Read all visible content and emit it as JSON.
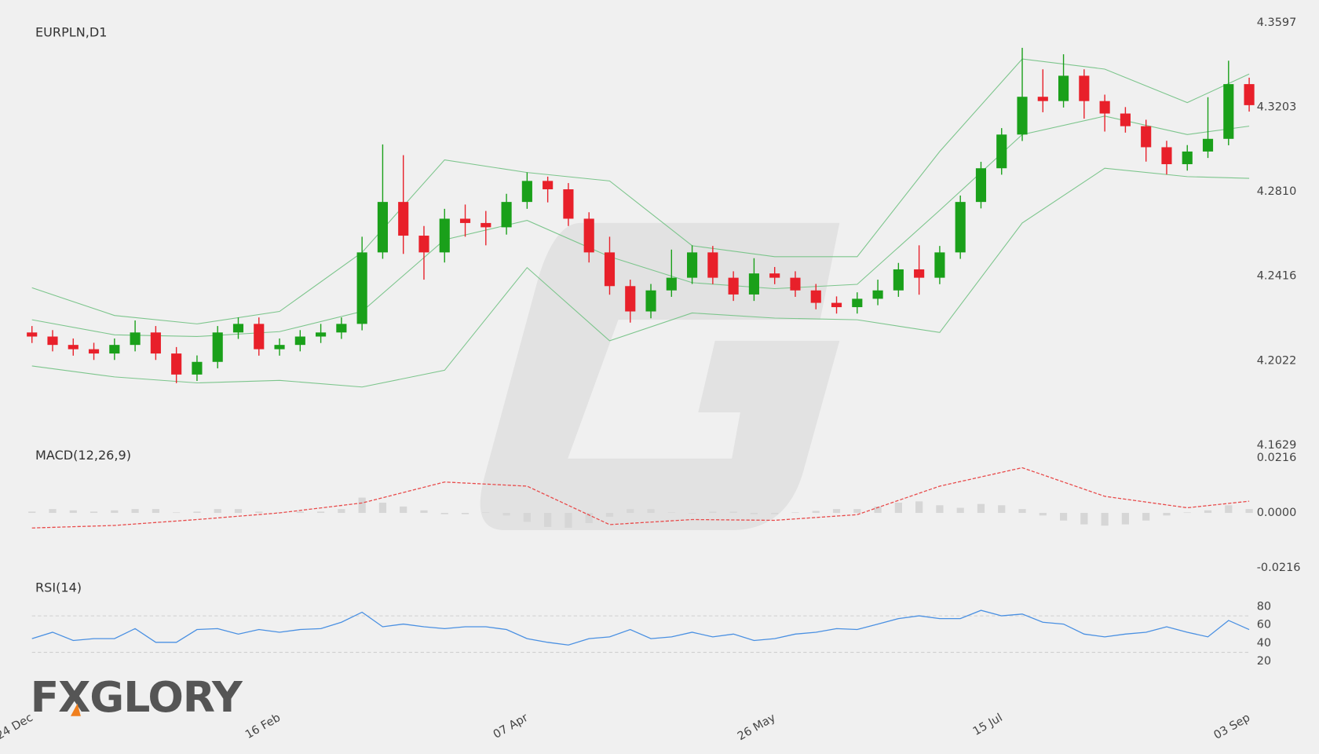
{
  "logo": "FXGLORY",
  "chart_data": [
    {
      "type": "candlestick",
      "title": "EURPLN,D1",
      "up_color": "#1aa01a",
      "down_color": "#e8202a",
      "open": [
        4.2154,
        4.2135,
        4.2096,
        4.2076,
        4.2056,
        4.2096,
        4.2154,
        4.2056,
        4.1958,
        4.2017,
        4.2154,
        4.2194,
        4.2076,
        4.2096,
        4.2135,
        4.2154,
        4.2194,
        4.2527,
        4.2762,
        4.2605,
        4.2527,
        4.2684,
        4.2664,
        4.2644,
        4.2762,
        4.286,
        4.2821,
        4.2684,
        4.2527,
        4.237,
        4.2252,
        4.235,
        4.2409,
        4.2527,
        4.2409,
        4.2331,
        4.2429,
        4.2409,
        4.235,
        4.2292,
        4.2272,
        4.2311,
        4.235,
        4.2448,
        4.2409,
        4.2527,
        4.2762,
        4.2919,
        4.3076,
        4.3252,
        4.3232,
        4.335,
        4.3232,
        4.3174,
        4.3115,
        4.3017,
        4.2938,
        4.2997,
        4.3056,
        4.3311
      ],
      "high": [
        4.2184,
        4.2165,
        4.2126,
        4.2106,
        4.2126,
        4.221,
        4.2184,
        4.2086,
        4.2047,
        4.2184,
        4.2224,
        4.2224,
        4.2126,
        4.2165,
        4.2194,
        4.2224,
        4.26,
        4.303,
        4.298,
        4.265,
        4.273,
        4.275,
        4.272,
        4.28,
        4.29,
        4.288,
        4.285,
        4.2714,
        4.26,
        4.24,
        4.238,
        4.254,
        4.256,
        4.2557,
        4.2439,
        4.25,
        4.2459,
        4.2439,
        4.238,
        4.2322,
        4.2341,
        4.24,
        4.2478,
        4.256,
        4.2557,
        4.2792,
        4.2949,
        4.3106,
        4.348,
        4.338,
        4.345,
        4.338,
        4.3262,
        4.3204,
        4.3145,
        4.3047,
        4.3027,
        4.325,
        4.342,
        4.3341
      ],
      "low": [
        4.2105,
        4.2066,
        4.2046,
        4.2026,
        4.2026,
        4.2066,
        4.2026,
        4.1918,
        4.1928,
        4.1987,
        4.2124,
        4.2046,
        4.2046,
        4.2066,
        4.2105,
        4.2124,
        4.2164,
        4.2497,
        4.252,
        4.24,
        4.248,
        4.26,
        4.256,
        4.261,
        4.273,
        4.276,
        4.265,
        4.248,
        4.233,
        4.22,
        4.222,
        4.232,
        4.238,
        4.2379,
        4.2301,
        4.2301,
        4.2379,
        4.232,
        4.2262,
        4.2242,
        4.2242,
        4.2281,
        4.232,
        4.233,
        4.2379,
        4.2497,
        4.2732,
        4.2889,
        4.3046,
        4.318,
        4.3202,
        4.315,
        4.309,
        4.3085,
        4.295,
        4.289,
        4.2908,
        4.2967,
        4.3026,
        4.3183
      ],
      "close": [
        4.2135,
        4.2096,
        4.2076,
        4.2056,
        4.2096,
        4.2154,
        4.2056,
        4.1958,
        4.2017,
        4.2154,
        4.2194,
        4.2076,
        4.2096,
        4.2135,
        4.2154,
        4.2194,
        4.2527,
        4.2762,
        4.2605,
        4.2527,
        4.2684,
        4.2664,
        4.2644,
        4.2762,
        4.286,
        4.2821,
        4.2684,
        4.2527,
        4.237,
        4.2252,
        4.235,
        4.2409,
        4.2527,
        4.2409,
        4.2331,
        4.2429,
        4.2409,
        4.235,
        4.2292,
        4.2272,
        4.2311,
        4.235,
        4.2448,
        4.2409,
        4.2527,
        4.2762,
        4.2919,
        4.3076,
        4.3252,
        4.3232,
        4.335,
        4.3232,
        4.3174,
        4.3115,
        4.3017,
        4.2938,
        4.2997,
        4.3056,
        4.3311,
        4.3213
      ],
      "bands": {
        "color": "#7cc58c",
        "x": [
          0,
          4,
          8,
          12,
          16,
          20,
          24,
          28,
          32,
          36,
          40,
          44,
          48,
          52,
          56,
          59
        ],
        "upper": [
          4.2362,
          4.2233,
          4.2194,
          4.2252,
          4.2527,
          4.2958,
          4.2899,
          4.286,
          4.2558,
          4.2507,
          4.2507,
          4.2997,
          4.3428,
          4.3381,
          4.3225,
          4.3358
        ],
        "middle": [
          4.2213,
          4.2143,
          4.2135,
          4.2158,
          4.2252,
          4.2586,
          4.2676,
          4.2507,
          4.2386,
          4.2358,
          4.2378,
          4.2723,
          4.3076,
          4.3162,
          4.3076,
          4.3115
        ],
        "lower": [
          4.1998,
          4.1947,
          4.1919,
          4.1931,
          4.19,
          4.1978,
          4.2456,
          4.2115,
          4.2245,
          4.2221,
          4.2213,
          4.2154,
          4.2664,
          4.2919,
          4.288,
          4.2872
        ]
      },
      "ylim": [
        4.1629,
        4.3597
      ],
      "yticks": [
        4.3597,
        4.3203,
        {
          "value": 4.281,
          "label": "4.2810"
        },
        4.2416,
        4.2022,
        4.1629
      ]
    },
    {
      "type": "macd",
      "title": "MACD(12,26,9)",
      "histogram_color": "#d6d6d6",
      "histogram": [
        0.0005,
        0.0015,
        0.001,
        0.0005,
        0.001,
        0.0015,
        0.0015,
        0.0002,
        0.0005,
        0.0015,
        0.0015,
        0.0005,
        0.0002,
        0.0005,
        0.0005,
        0.0015,
        0.006,
        0.004,
        0.0025,
        0.001,
        -0.0005,
        -0.0005,
        0.0002,
        -0.001,
        -0.0035,
        -0.0055,
        -0.0058,
        -0.004,
        -0.0015,
        0.0015,
        0.0015,
        0.0002,
        -0.0002,
        0.0005,
        0.0005,
        -0.0005,
        -0.0005,
        0.0002,
        0.0008,
        0.0015,
        0.0015,
        0.0025,
        0.004,
        0.0045,
        0.003,
        0.002,
        0.0035,
        0.003,
        0.0015,
        -0.001,
        -0.003,
        -0.0045,
        -0.005,
        -0.0045,
        -0.003,
        -0.001,
        0.0002,
        0.001,
        0.003,
        0.0015
      ],
      "signal": {
        "color": "#e84a4a",
        "x": [
          0,
          4,
          8,
          12,
          16,
          20,
          24,
          28,
          32,
          36,
          40,
          44,
          48,
          52,
          56,
          59
        ],
        "values": [
          -0.0059,
          -0.0049,
          -0.0026,
          0,
          0.0039,
          0.0121,
          0.0105,
          -0.0046,
          -0.0026,
          -0.0029,
          -0.0007,
          0.0105,
          0.0177,
          0.0065,
          0.002,
          0.0046
        ]
      },
      "ylim": [
        -0.0216,
        0.0216
      ],
      "yticks": [
        0.0216,
        {
          "value": 0,
          "label": "0.0000"
        },
        -0.0216
      ]
    },
    {
      "type": "line",
      "title": "RSI(14)",
      "color": "#4a90e2",
      "values": [
        45,
        52,
        43,
        45,
        45,
        56,
        41,
        41,
        55,
        56,
        50,
        55,
        52,
        55,
        56,
        63,
        74,
        58,
        61,
        58,
        56,
        58,
        58,
        55,
        45,
        41,
        38,
        45,
        47,
        55,
        45,
        47,
        52,
        47,
        50,
        43,
        45,
        50,
        52,
        56,
        55,
        61,
        67,
        70,
        67,
        67,
        76,
        70,
        72,
        63,
        61,
        50,
        47,
        50,
        52,
        58,
        52,
        47,
        65,
        55
      ],
      "levels": [
        70,
        30
      ],
      "ylim": [
        20,
        80
      ],
      "yticks": [
        80,
        60,
        40,
        20
      ],
      "xticks": [
        {
          "value": 0,
          "label": "24 Dec"
        },
        {
          "value": 12,
          "label": "16 Feb"
        },
        {
          "value": 24,
          "label": "07 Apr"
        },
        {
          "value": 36,
          "label": "26 May"
        },
        {
          "value": 47,
          "label": "15 Jul"
        },
        {
          "value": 59,
          "label": "03 Sep"
        }
      ]
    }
  ]
}
